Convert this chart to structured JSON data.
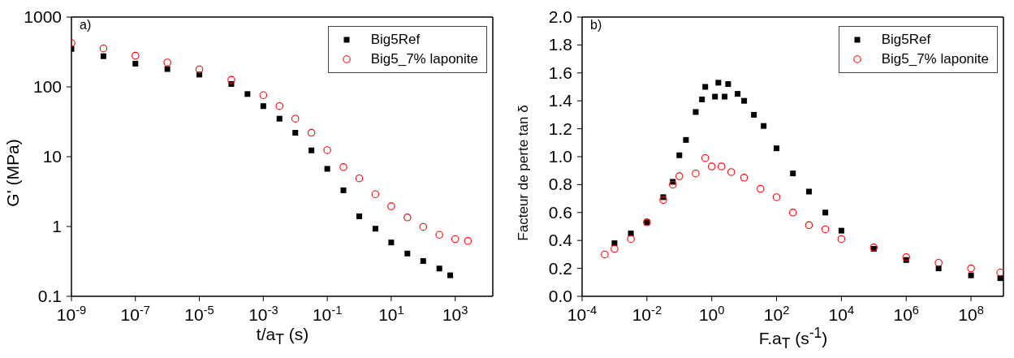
{
  "chart_data": [
    {
      "type": "scatter",
      "annotations": [
        "a)"
      ],
      "xlabel": "t/a$_{T}$ (s)",
      "ylabel": "G' (MPa)",
      "log": "xy",
      "legend": "top right",
      "xlim": [
        1e-09,
        15000
      ],
      "xticks": [
        {
          "value": 1e-09,
          "label": "10$^{-9}$"
        },
        {
          "value": 1e-07,
          "label": "10$^{-7}$"
        },
        {
          "value": 1e-05,
          "label": "10$^{-5}$"
        },
        {
          "value": 0.001,
          "label": "10$^{-3}$"
        },
        {
          "value": 0.1,
          "label": "10$^{-1}$"
        },
        {
          "value": 10,
          "label": "10$^{1}$"
        },
        {
          "value": 1000,
          "label": "10$^{3}$"
        }
      ],
      "ylim": [
        0.1,
        1000
      ],
      "yticks": [
        0.1,
        1,
        10,
        100,
        1000
      ],
      "series": [
        {
          "name": "Big5Ref",
          "color": "#000000",
          "marker": "square",
          "x": [
            1e-09,
            1e-08,
            1e-07,
            1e-06,
            1e-05,
            0.0001,
            0.00032,
            0.001,
            0.0032,
            0.01,
            0.032,
            0.1,
            0.32,
            1,
            3.2,
            10,
            32,
            100,
            320,
            700
          ],
          "values": [
            350,
            275,
            215,
            180,
            150,
            110,
            79,
            53,
            35,
            22,
            12.3,
            6.7,
            3.3,
            1.4,
            0.93,
            0.59,
            0.41,
            0.32,
            0.25,
            0.2
          ]
        },
        {
          "name": "Big5_7% laponite",
          "color": "#ff0000",
          "marker": "circle",
          "x": [
            1e-09,
            1e-08,
            1e-07,
            1e-06,
            1e-05,
            0.0001,
            0.001,
            0.0032,
            0.01,
            0.032,
            0.1,
            0.32,
            1,
            3.2,
            10,
            32,
            100,
            320,
            1000,
            2500
          ],
          "values": [
            425,
            355,
            280,
            224,
            178,
            126,
            76,
            53,
            35,
            22,
            12.4,
            7.1,
            4.9,
            2.9,
            1.95,
            1.35,
            0.99,
            0.76,
            0.66,
            0.62
          ]
        }
      ]
    },
    {
      "type": "scatter",
      "annotations": [
        "b)"
      ],
      "xlabel": "F.a$_{T}$ (s$^{-1}$)",
      "ylabel": "Facteur de perte tan δ",
      "log": "x",
      "legend": "top right",
      "xlim": [
        0.0001,
        1000000000.0
      ],
      "xticks": [
        {
          "value": 0.0001,
          "label": "10$^{-4}$"
        },
        {
          "value": 0.01,
          "label": "10$^{-2}$"
        },
        {
          "value": 1,
          "label": "10$^{0}$"
        },
        {
          "value": 100,
          "label": "10$^{2}$"
        },
        {
          "value": 10000,
          "label": "10$^{4}$"
        },
        {
          "value": 1000000,
          "label": "10$^{6}$"
        },
        {
          "value": 100000000,
          "label": "10$^{8}$"
        }
      ],
      "ylim": [
        0,
        2
      ],
      "yticks": [
        {
          "value": 0,
          "label": "0.0"
        },
        0.2,
        0.4,
        0.6,
        0.8,
        {
          "value": 1,
          "label": "1.0"
        },
        1.2,
        1.4,
        1.6,
        1.8,
        {
          "value": 2,
          "label": "2.0"
        }
      ],
      "series": [
        {
          "name": "Big5Ref",
          "color": "#000000",
          "marker": "square",
          "x": [
            0.001,
            0.0032,
            0.01,
            0.032,
            0.063,
            0.1,
            0.16,
            0.32,
            0.5,
            0.63,
            1.26,
            1.6,
            2.5,
            3.2,
            6.3,
            10,
            20,
            40,
            100,
            320,
            1000,
            3200,
            10000,
            100000,
            1000000,
            10000000,
            100000000,
            800000000
          ],
          "values": [
            0.38,
            0.45,
            0.53,
            0.71,
            0.82,
            1.01,
            1.12,
            1.32,
            1.41,
            1.5,
            1.43,
            1.53,
            1.43,
            1.52,
            1.45,
            1.4,
            1.3,
            1.22,
            1.06,
            0.88,
            0.75,
            0.6,
            0.47,
            0.34,
            0.26,
            0.2,
            0.15,
            0.13
          ]
        },
        {
          "name": "Big5_7% laponite",
          "color": "#ff0000",
          "marker": "circle",
          "x": [
            0.0005,
            0.001,
            0.0032,
            0.01,
            0.032,
            0.063,
            0.1,
            0.32,
            0.63,
            1,
            2,
            4,
            10,
            32,
            100,
            320,
            1000,
            3200,
            10000,
            100000,
            1000000,
            10000000,
            100000000,
            800000000
          ],
          "values": [
            0.3,
            0.34,
            0.41,
            0.53,
            0.69,
            0.8,
            0.86,
            0.88,
            0.99,
            0.93,
            0.93,
            0.89,
            0.85,
            0.77,
            0.71,
            0.6,
            0.51,
            0.48,
            0.41,
            0.35,
            0.28,
            0.24,
            0.2,
            0.17
          ]
        }
      ]
    }
  ]
}
